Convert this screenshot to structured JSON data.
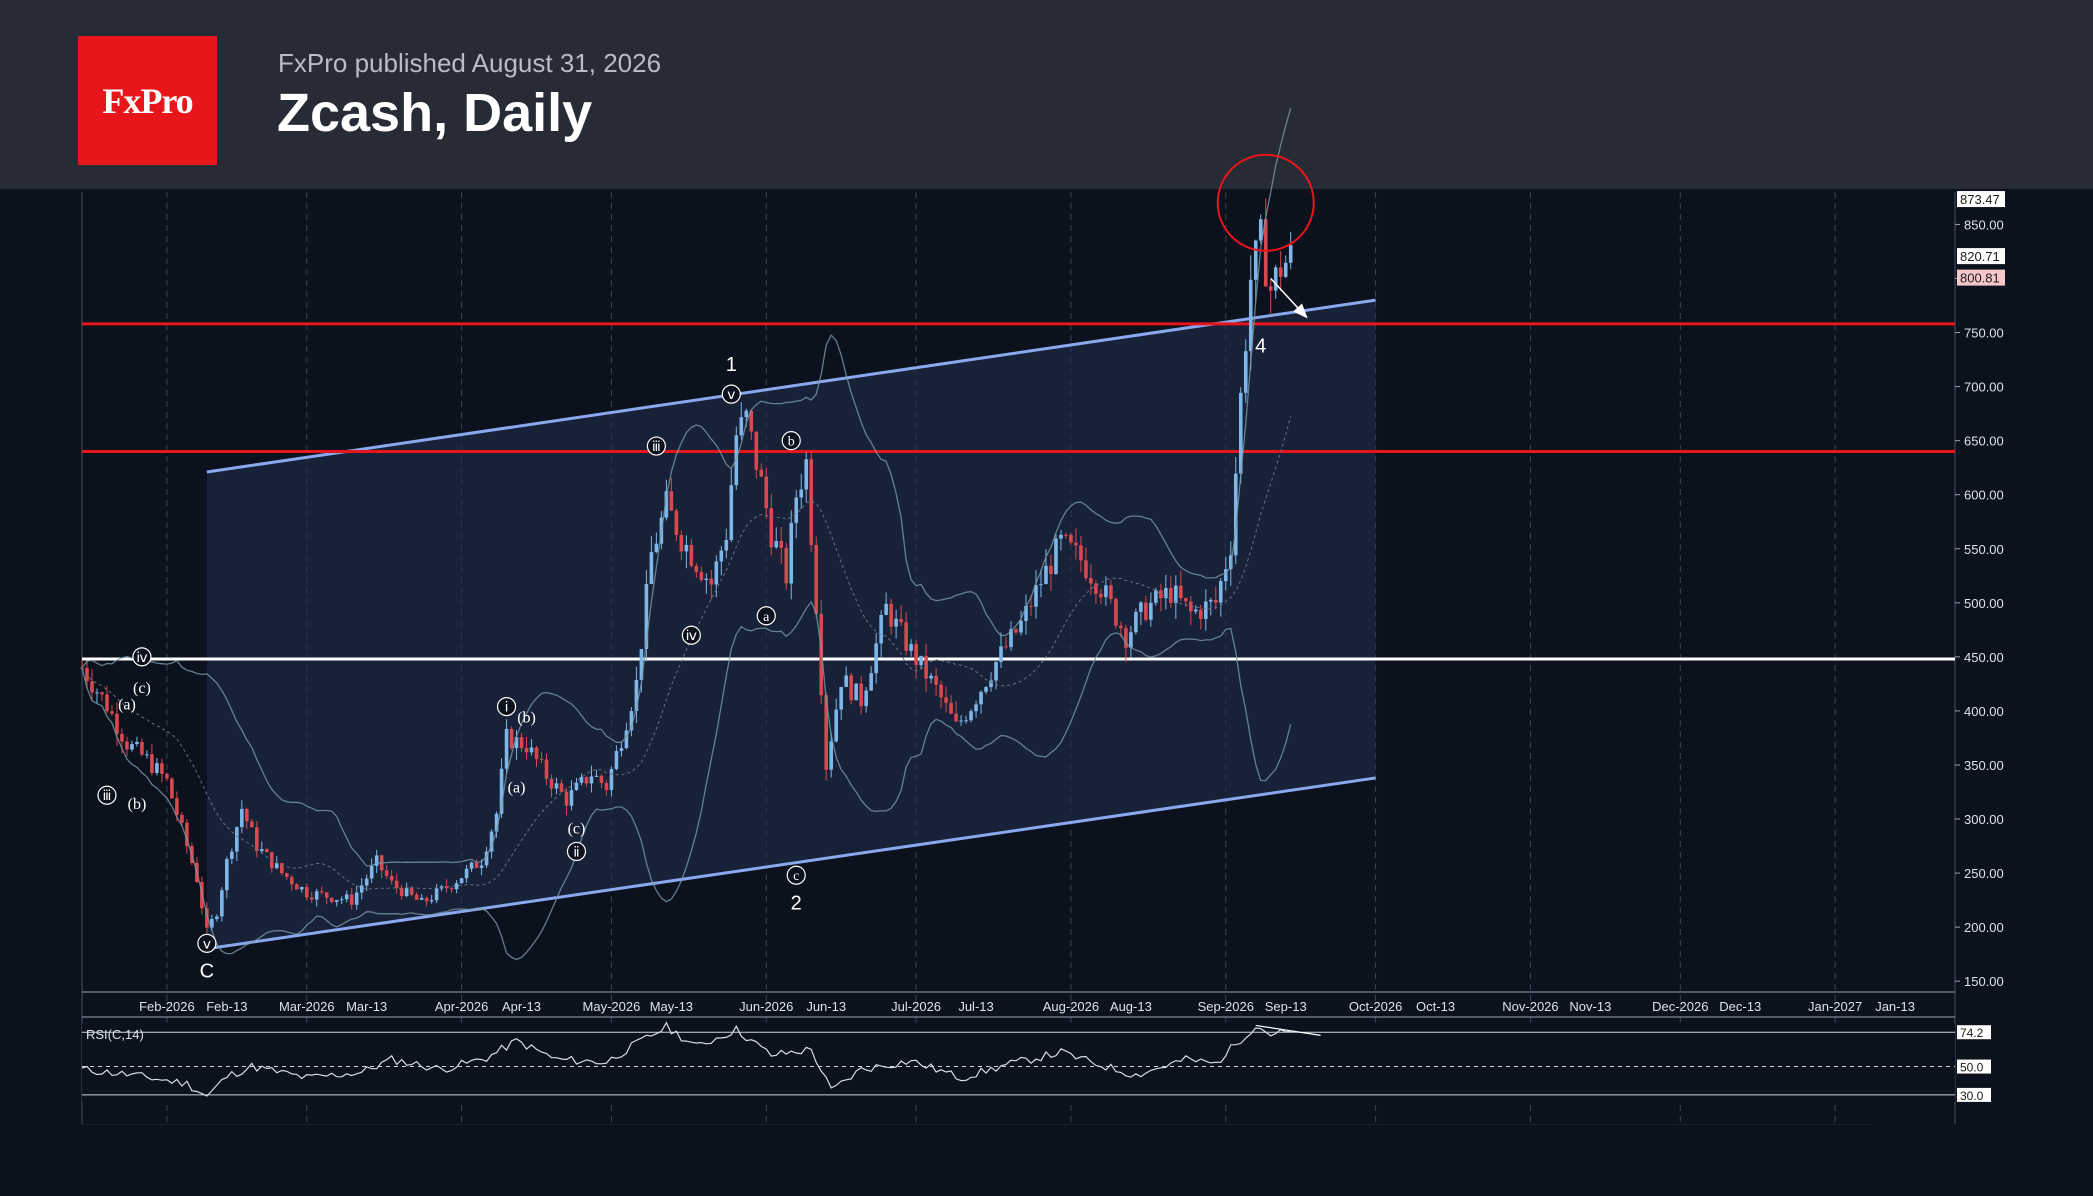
{
  "header": {
    "logo_text": "FxPro",
    "published": "FxPro published August 31, 2026",
    "title": "Zcash, Daily"
  },
  "colors": {
    "background": "#0b111d",
    "header": "#272b36",
    "logo": "#e8151b",
    "bull_candle": "#7fb6e8",
    "bear_candle": "#d9484f",
    "channel": "#8aa8ee",
    "resistance": "#e8151b",
    "support": "#ffffff"
  },
  "chart_data": {
    "type": "candlestick",
    "title": "Zcash, Daily",
    "price_axis": {
      "ylim": [
        140,
        880
      ],
      "ticks": [
        150,
        200,
        250,
        300,
        350,
        400,
        450,
        500,
        550,
        600,
        650,
        700,
        750,
        800,
        850
      ],
      "tick_labels": [
        "150.00",
        "200.00",
        "250.00",
        "300.00",
        "350.00",
        "400.00",
        "450.00",
        "500.00",
        "550.00",
        "600.00",
        "650.00",
        "700.00",
        "750.00",
        "",
        "850.00"
      ],
      "badges": [
        {
          "label": "873.47",
          "value": 873.47,
          "color": "#ffffff"
        },
        {
          "label": "820.71",
          "value": 820.71,
          "color": "#ffffff"
        },
        {
          "label": "800.81",
          "value": 800.81,
          "color": "#f6c7cb"
        }
      ]
    },
    "x_axis": {
      "xlim": [
        "2026-01-15",
        "2027-01-25"
      ],
      "ticks": [
        {
          "label": "Feb-2026",
          "date": "2026-02-01",
          "grid": true
        },
        {
          "label": "Feb-13",
          "date": "2026-02-13",
          "grid": false
        },
        {
          "label": "Mar-2026",
          "date": "2026-03-01",
          "grid": true
        },
        {
          "label": "Mar-13",
          "date": "2026-03-13",
          "grid": false
        },
        {
          "label": "Apr-2026",
          "date": "2026-04-01",
          "grid": true
        },
        {
          "label": "Apr-13",
          "date": "2026-04-13",
          "grid": false
        },
        {
          "label": "May-2026",
          "date": "2026-05-01",
          "grid": true
        },
        {
          "label": "May-13",
          "date": "2026-05-13",
          "grid": false
        },
        {
          "label": "Jun-2026",
          "date": "2026-06-01",
          "grid": true
        },
        {
          "label": "Jun-13",
          "date": "2026-06-13",
          "grid": false
        },
        {
          "label": "Jul-2026",
          "date": "2026-07-01",
          "grid": true
        },
        {
          "label": "Jul-13",
          "date": "2026-07-13",
          "grid": false
        },
        {
          "label": "Aug-2026",
          "date": "2026-08-01",
          "grid": true
        },
        {
          "label": "Aug-13",
          "date": "2026-08-13",
          "grid": false
        },
        {
          "label": "Sep-2026",
          "date": "2026-09-01",
          "grid": true
        },
        {
          "label": "Sep-13",
          "date": "2026-09-13",
          "grid": false
        },
        {
          "label": "Oct-2026",
          "date": "2026-10-01",
          "grid": true
        },
        {
          "label": "Oct-13",
          "date": "2026-10-13",
          "grid": false
        },
        {
          "label": "Nov-2026",
          "date": "2026-11-01",
          "grid": true
        },
        {
          "label": "Nov-13",
          "date": "2026-11-13",
          "grid": false
        },
        {
          "label": "Dec-2026",
          "date": "2026-12-01",
          "grid": true
        },
        {
          "label": "Dec-13",
          "date": "2026-12-13",
          "grid": false
        },
        {
          "label": "Jan-2027",
          "date": "2027-01-01",
          "grid": true
        },
        {
          "label": "Jan-13",
          "date": "2027-01-13",
          "grid": false
        }
      ]
    },
    "price_path": [
      [
        "2026-01-15",
        440
      ],
      [
        "2026-01-20",
        405
      ],
      [
        "2026-01-24",
        370
      ],
      [
        "2026-01-28",
        355
      ],
      [
        "2026-02-01",
        335
      ],
      [
        "2026-02-04",
        290
      ],
      [
        "2026-02-07",
        245
      ],
      [
        "2026-02-09",
        195
      ],
      [
        "2026-02-11",
        215
      ],
      [
        "2026-02-13",
        260
      ],
      [
        "2026-02-16",
        310
      ],
      [
        "2026-02-19",
        275
      ],
      [
        "2026-02-24",
        250
      ],
      [
        "2026-03-01",
        232
      ],
      [
        "2026-03-06",
        228
      ],
      [
        "2026-03-10",
        225
      ],
      [
        "2026-03-15",
        260
      ],
      [
        "2026-03-18",
        240
      ],
      [
        "2026-03-24",
        222
      ],
      [
        "2026-03-30",
        240
      ],
      [
        "2026-04-05",
        262
      ],
      [
        "2026-04-08",
        305
      ],
      [
        "2026-04-10",
        375
      ],
      [
        "2026-04-14",
        368
      ],
      [
        "2026-04-18",
        340
      ],
      [
        "2026-04-22",
        318
      ],
      [
        "2026-04-27",
        342
      ],
      [
        "2026-04-30",
        330
      ],
      [
        "2026-05-03",
        375
      ],
      [
        "2026-05-06",
        425
      ],
      [
        "2026-05-09",
        545
      ],
      [
        "2026-05-12",
        590
      ],
      [
        "2026-05-15",
        560
      ],
      [
        "2026-05-18",
        538
      ],
      [
        "2026-05-21",
        518
      ],
      [
        "2026-05-24",
        565
      ],
      [
        "2026-05-26",
        655
      ],
      [
        "2026-05-28",
        670
      ],
      [
        "2026-05-31",
        610
      ],
      [
        "2026-06-02",
        565
      ],
      [
        "2026-06-05",
        525
      ],
      [
        "2026-06-07",
        600
      ],
      [
        "2026-06-09",
        630
      ],
      [
        "2026-06-11",
        500
      ],
      [
        "2026-06-13",
        350
      ],
      [
        "2026-06-16",
        430
      ],
      [
        "2026-06-20",
        410
      ],
      [
        "2026-06-25",
        495
      ],
      [
        "2026-06-30",
        455
      ],
      [
        "2026-07-05",
        420
      ],
      [
        "2026-07-09",
        385
      ],
      [
        "2026-07-12",
        405
      ],
      [
        "2026-07-17",
        445
      ],
      [
        "2026-07-22",
        480
      ],
      [
        "2026-07-26",
        520
      ],
      [
        "2026-07-30",
        555
      ],
      [
        "2026-08-03",
        540
      ],
      [
        "2026-08-07",
        515
      ],
      [
        "2026-08-12",
        470
      ],
      [
        "2026-08-16",
        495
      ],
      [
        "2026-08-21",
        510
      ],
      [
        "2026-08-25",
        490
      ],
      [
        "2026-08-30",
        500
      ],
      [
        "2026-09-02",
        555
      ],
      [
        "2026-09-04",
        690
      ],
      [
        "2026-09-06",
        800
      ],
      [
        "2026-09-08",
        835
      ],
      [
        "2026-09-10",
        790
      ],
      [
        "2026-09-12",
        810
      ],
      [
        "2026-09-14",
        820
      ]
    ],
    "horizontal_levels": [
      {
        "value": 758,
        "color": "#e8151b"
      },
      {
        "value": 640,
        "color": "#e8151b"
      },
      {
        "value": 448,
        "color": "#ffffff"
      }
    ],
    "channel": {
      "upper": [
        [
          "2026-02-09",
          621
        ],
        [
          "2026-10-01",
          780
        ]
      ],
      "lower": [
        [
          "2026-02-09",
          180
        ],
        [
          "2026-10-01",
          338
        ]
      ]
    },
    "wave_annotations": [
      {
        "label": "ⅳ",
        "date": "2026-01-27",
        "price": 450,
        "circled": true
      },
      {
        "label": "(c)",
        "date": "2026-01-27",
        "price": 422,
        "circled": false
      },
      {
        "label": "(a)",
        "date": "2026-01-24",
        "price": 407,
        "circled": false
      },
      {
        "label": "ⅲ",
        "date": "2026-01-20",
        "price": 322,
        "circled": true
      },
      {
        "label": "(b)",
        "date": "2026-01-26",
        "price": 315,
        "circled": false
      },
      {
        "label": "ⅴ",
        "date": "2026-02-09",
        "price": 185,
        "circled": true
      },
      {
        "label": "C",
        "date": "2026-02-09",
        "price": 159,
        "circled": false
      },
      {
        "label": "ⅰ",
        "date": "2026-04-10",
        "price": 404,
        "circled": true
      },
      {
        "label": "(b)",
        "date": "2026-04-14",
        "price": 395,
        "circled": false
      },
      {
        "label": "(a)",
        "date": "2026-04-12",
        "price": 330,
        "circled": false
      },
      {
        "label": "(c)",
        "date": "2026-04-24",
        "price": 292,
        "circled": false
      },
      {
        "label": "ⅱ",
        "date": "2026-04-24",
        "price": 270,
        "circled": true
      },
      {
        "label": "ⅲ",
        "date": "2026-05-10",
        "price": 645,
        "circled": true
      },
      {
        "label": "ⅳ",
        "date": "2026-05-17",
        "price": 470,
        "circled": true
      },
      {
        "label": "ⅴ",
        "date": "2026-05-25",
        "price": 693,
        "circled": true
      },
      {
        "label": "1",
        "date": "2026-05-25",
        "price": 720,
        "circled": false
      },
      {
        "label": "b",
        "date": "2026-06-06",
        "price": 650,
        "circled": true
      },
      {
        "label": "a",
        "date": "2026-06-01",
        "price": 488,
        "circled": true
      },
      {
        "label": "c",
        "date": "2026-06-07",
        "price": 248,
        "circled": true
      },
      {
        "label": "2",
        "date": "2026-06-07",
        "price": 222,
        "circled": false
      },
      {
        "label": "4",
        "date": "2026-09-08",
        "price": 737,
        "circled": false
      }
    ],
    "rsi": {
      "label": "RSI(C,14)",
      "ylim": [
        25,
        80
      ],
      "levels": [
        {
          "label": "74.2",
          "value": 74.2
        },
        {
          "label": "50.0",
          "value": 50
        },
        {
          "label": "30.0",
          "value": 30
        }
      ],
      "path": [
        [
          "2026-01-15",
          48
        ],
        [
          "2026-01-25",
          44
        ],
        [
          "2026-02-05",
          38
        ],
        [
          "2026-02-09",
          29
        ],
        [
          "2026-02-13",
          43
        ],
        [
          "2026-02-18",
          50
        ],
        [
          "2026-03-01",
          42
        ],
        [
          "2026-03-12",
          46
        ],
        [
          "2026-03-18",
          55
        ],
        [
          "2026-03-28",
          48
        ],
        [
          "2026-04-06",
          56
        ],
        [
          "2026-04-12",
          68
        ],
        [
          "2026-04-20",
          55
        ],
        [
          "2026-04-30",
          53
        ],
        [
          "2026-05-06",
          66
        ],
        [
          "2026-05-12",
          78
        ],
        [
          "2026-05-18",
          64
        ],
        [
          "2026-05-26",
          76
        ],
        [
          "2026-06-02",
          58
        ],
        [
          "2026-06-10",
          62
        ],
        [
          "2026-06-14",
          33
        ],
        [
          "2026-06-20",
          48
        ],
        [
          "2026-06-30",
          54
        ],
        [
          "2026-07-10",
          42
        ],
        [
          "2026-07-20",
          52
        ],
        [
          "2026-07-30",
          60
        ],
        [
          "2026-08-06",
          52
        ],
        [
          "2026-08-14",
          44
        ],
        [
          "2026-08-24",
          55
        ],
        [
          "2026-08-30",
          52
        ],
        [
          "2026-09-03",
          66
        ],
        [
          "2026-09-07",
          79
        ],
        [
          "2026-09-10",
          73
        ],
        [
          "2026-09-14",
          74.2
        ]
      ]
    }
  }
}
